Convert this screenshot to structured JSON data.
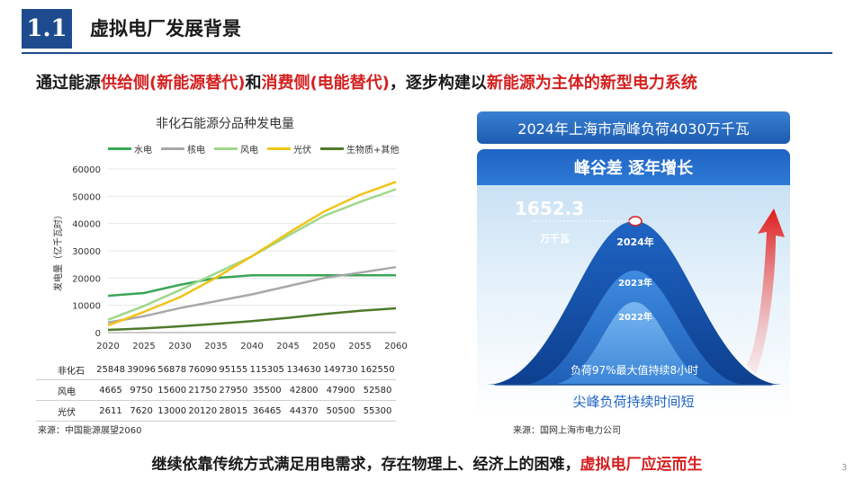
{
  "header": {
    "section_number": "1.1",
    "title": "虚拟电厂发展背景"
  },
  "headline": {
    "p1": "通过能源",
    "p2": "供给侧(新能源替代)",
    "p3": "和",
    "p4": "消费侧(电能替代)",
    "p5": "，逐步构建以",
    "p6": "新能源为主体的新型电力系统"
  },
  "chart_data": {
    "type": "line",
    "title": "非化石能源分品种发电量",
    "ylabel": "发电量（亿千瓦时）",
    "x": [
      "2020",
      "2025",
      "2030",
      "2035",
      "2040",
      "2045",
      "2050",
      "2055",
      "2060"
    ],
    "ylim": [
      0,
      60000
    ],
    "yticks": [
      "0",
      "10000",
      "20000",
      "30000",
      "40000",
      "50000",
      "60000"
    ],
    "series": [
      {
        "name": "水电",
        "color": "#3aa655",
        "values": [
          13500,
          14500,
          17500,
          20000,
          21000,
          21000,
          21000,
          21000,
          21000
        ]
      },
      {
        "name": "核电",
        "color": "#a8a8a8",
        "values": [
          3700,
          6000,
          9000,
          11500,
          14000,
          17000,
          20000,
          22000,
          24000
        ]
      },
      {
        "name": "风电",
        "color": "#9ed88a",
        "values": [
          4665,
          9750,
          15600,
          21750,
          27950,
          35500,
          42800,
          47900,
          52580
        ]
      },
      {
        "name": "光伏",
        "color": "#f0c419",
        "values": [
          2611,
          7620,
          13000,
          20120,
          28015,
          36465,
          44370,
          50500,
          55300
        ]
      },
      {
        "name": "生物质+其他",
        "color": "#4e7a2a",
        "values": [
          1000,
          1500,
          2300,
          3200,
          4200,
          5400,
          6800,
          8000,
          8900
        ]
      }
    ],
    "grid": true,
    "legend": "top"
  },
  "table": {
    "rows": [
      {
        "label": "非化石",
        "values": [
          "25848",
          "39096",
          "56878",
          "76090",
          "95155",
          "115305",
          "134630",
          "149730",
          "162550"
        ]
      },
      {
        "label": "风电",
        "values": [
          "4665",
          "9750",
          "15600",
          "21750",
          "27950",
          "35500",
          "42800",
          "47900",
          "52580"
        ]
      },
      {
        "label": "光伏",
        "values": [
          "2611",
          "7620",
          "13000",
          "20120",
          "28015",
          "36465",
          "44370",
          "50500",
          "55300"
        ]
      }
    ]
  },
  "source_left": "来源：中国能源展望2060",
  "right": {
    "banner": "2024年上海市高峰负荷4030万千瓦",
    "panel_title": "峰谷差 逐年增长",
    "peak_value": "1652.3",
    "peak_unit": "万千瓦",
    "year_2024": "2024年",
    "year_2023": "2023年",
    "year_2022": "2022年",
    "load_note": "负荷97%最大值持续8小时",
    "footer": "尖峰负荷持续时间短"
  },
  "source_right": "来源：国网上海市电力公司",
  "bottom": {
    "part1": "继续依靠传统方式满足用电需求，存在物理上、经济上的困难，",
    "part2": "虚拟电厂应运而生"
  },
  "page_number": "3"
}
